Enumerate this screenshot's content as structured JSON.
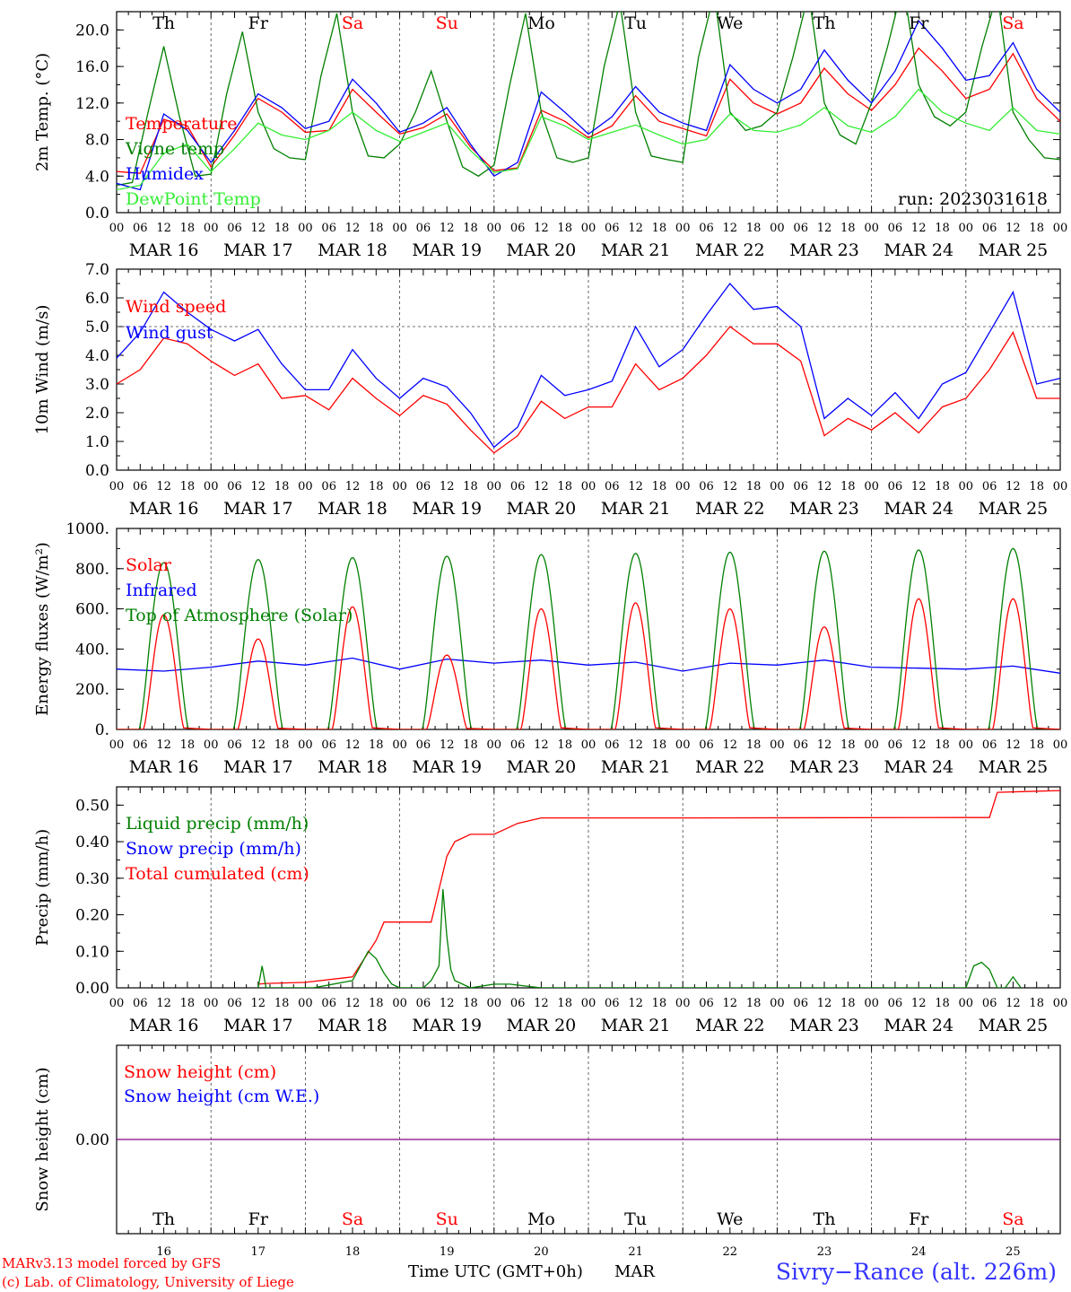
{
  "chart_data": [
    {
      "type": "line",
      "ylabel": "2m Temp. (°C)",
      "ylim": [
        0,
        22
      ],
      "yticks": [
        "0.0",
        "4.0",
        "8.0",
        "12.0",
        "16.0",
        "20.0"
      ],
      "ytick_values": [
        0,
        4,
        8,
        12,
        16,
        20
      ],
      "legend": [
        {
          "label": "Temperature",
          "color": "#ff0000"
        },
        {
          "label": "Vigne temp",
          "color": "#008000"
        },
        {
          "label": "Humidex",
          "color": "#0000ff"
        },
        {
          "label": "DewPoint Temp",
          "color": "#33ee33"
        }
      ],
      "run_label": "run: 2023031618",
      "series": [
        {
          "name": "Temperature",
          "color": "#ff0000",
          "x": [
            0,
            6,
            12,
            18,
            24,
            30,
            36,
            42,
            48,
            54,
            60,
            66,
            72,
            78,
            84,
            90,
            96,
            102,
            108,
            114,
            120,
            126,
            132,
            138,
            144,
            150,
            156,
            162,
            168,
            174,
            180,
            186,
            192,
            198,
            204,
            210,
            216,
            222,
            228,
            234,
            240
          ],
          "y": [
            4.5,
            4.3,
            10.2,
            9.5,
            5.0,
            8.5,
            12.5,
            11.0,
            8.8,
            9.0,
            13.5,
            11.0,
            8.6,
            9.3,
            10.8,
            7.2,
            4.6,
            4.9,
            11.2,
            10.0,
            8.2,
            9.5,
            12.8,
            10.0,
            9.2,
            8.4,
            14.6,
            12.0,
            10.8,
            12.0,
            15.8,
            13.0,
            11.2,
            14.0,
            18.0,
            15.5,
            12.5,
            13.5,
            17.4,
            12.5,
            10.0
          ]
        },
        {
          "name": "Vigne temp",
          "color": "#008000",
          "x": [
            0,
            4,
            8,
            12,
            16,
            20,
            24,
            28,
            32,
            36,
            40,
            44,
            48,
            52,
            56,
            60,
            64,
            68,
            72,
            76,
            80,
            84,
            88,
            92,
            96,
            100,
            104,
            108,
            112,
            116,
            120,
            124,
            128,
            132,
            136,
            140,
            144,
            148,
            152,
            156,
            160,
            164,
            168,
            172,
            176,
            180,
            184,
            188,
            192,
            196,
            200,
            204,
            208,
            212,
            216,
            220,
            224,
            228,
            232,
            236,
            240
          ],
          "y": [
            3.0,
            3.3,
            11.0,
            18.2,
            10.5,
            4.0,
            4.2,
            13.0,
            19.8,
            11.0,
            7.0,
            6.0,
            5.8,
            15.0,
            21.8,
            11.0,
            6.2,
            6.0,
            7.5,
            11.0,
            15.5,
            10.0,
            5.0,
            4.0,
            5.2,
            14.0,
            21.8,
            11.0,
            6.0,
            5.5,
            6.0,
            16.0,
            23.0,
            11.0,
            6.2,
            5.8,
            5.5,
            17.0,
            24.0,
            11.0,
            9.0,
            9.5,
            11.0,
            17.0,
            24.0,
            12.0,
            8.5,
            7.5,
            12.0,
            18.0,
            25.0,
            14.0,
            10.5,
            9.5,
            11.0,
            18.0,
            24.0,
            11.0,
            8.0,
            6.0,
            5.8
          ]
        },
        {
          "name": "Humidex",
          "color": "#0000ff",
          "x": [
            0,
            6,
            12,
            18,
            24,
            30,
            36,
            42,
            48,
            54,
            60,
            66,
            72,
            78,
            84,
            90,
            96,
            102,
            108,
            114,
            120,
            126,
            132,
            138,
            144,
            150,
            156,
            162,
            168,
            174,
            180,
            186,
            192,
            198,
            204,
            210,
            216,
            222,
            228,
            234,
            240
          ],
          "y": [
            3.2,
            2.5,
            10.8,
            9.0,
            5.5,
            9.0,
            13.0,
            11.5,
            9.2,
            10.0,
            14.6,
            12.0,
            8.8,
            9.8,
            11.5,
            7.5,
            4.0,
            5.5,
            13.2,
            11.0,
            8.6,
            10.5,
            13.8,
            11.0,
            9.8,
            9.0,
            16.2,
            13.5,
            12.0,
            13.5,
            17.8,
            14.5,
            12.0,
            15.5,
            21.0,
            18.0,
            14.5,
            15.0,
            18.6,
            13.5,
            11.0
          ]
        },
        {
          "name": "DewPoint Temp",
          "color": "#33ee33",
          "x": [
            0,
            6,
            12,
            18,
            24,
            30,
            36,
            42,
            48,
            54,
            60,
            66,
            72,
            78,
            84,
            90,
            96,
            102,
            108,
            114,
            120,
            126,
            132,
            138,
            144,
            150,
            156,
            162,
            168,
            174,
            180,
            186,
            192,
            198,
            204,
            210,
            216,
            222,
            228,
            234,
            240
          ],
          "y": [
            2.5,
            3.0,
            6.5,
            7.5,
            4.5,
            7.0,
            9.8,
            8.5,
            8.0,
            9.0,
            11.0,
            9.0,
            7.8,
            8.8,
            9.8,
            6.8,
            4.4,
            4.8,
            10.5,
            9.5,
            8.0,
            8.8,
            9.6,
            8.5,
            7.5,
            8.0,
            10.8,
            9.0,
            8.8,
            9.6,
            11.5,
            9.5,
            8.8,
            10.5,
            13.5,
            11.0,
            9.8,
            9.0,
            11.5,
            9.0,
            8.6
          ]
        }
      ]
    },
    {
      "type": "line",
      "ylabel": "10m Wind (m/s)",
      "ylim": [
        0,
        7
      ],
      "yticks": [
        "0.0",
        "1.0",
        "2.0",
        "3.0",
        "4.0",
        "5.0",
        "6.0",
        "7.0"
      ],
      "ytick_values": [
        0,
        1,
        2,
        3,
        4,
        5,
        6,
        7
      ],
      "ref_line": 5,
      "legend": [
        {
          "label": "Wind speed",
          "color": "#ff0000"
        },
        {
          "label": "Wind gust",
          "color": "#0000ff"
        }
      ],
      "series": [
        {
          "name": "Wind speed",
          "color": "#ff0000",
          "x": [
            0,
            6,
            12,
            18,
            24,
            30,
            36,
            42,
            48,
            54,
            60,
            66,
            72,
            78,
            84,
            90,
            96,
            102,
            108,
            114,
            120,
            126,
            132,
            138,
            144,
            150,
            156,
            162,
            168,
            174,
            180,
            186,
            192,
            198,
            204,
            210,
            216,
            222,
            228,
            234,
            240
          ],
          "y": [
            3.0,
            3.5,
            4.6,
            4.4,
            3.8,
            3.3,
            3.7,
            2.5,
            2.6,
            2.1,
            3.2,
            2.5,
            1.9,
            2.6,
            2.3,
            1.4,
            0.6,
            1.2,
            2.4,
            1.8,
            2.2,
            2.2,
            3.7,
            2.8,
            3.2,
            4.0,
            5.0,
            4.4,
            4.4,
            3.8,
            1.2,
            1.8,
            1.4,
            2.0,
            1.3,
            2.2,
            2.5,
            3.5,
            4.8,
            2.5,
            2.5
          ]
        },
        {
          "name": "Wind gust",
          "color": "#0000ff",
          "x": [
            0,
            6,
            12,
            18,
            24,
            30,
            36,
            42,
            48,
            54,
            60,
            66,
            72,
            78,
            84,
            90,
            96,
            102,
            108,
            114,
            120,
            126,
            132,
            138,
            144,
            150,
            156,
            162,
            168,
            174,
            180,
            186,
            192,
            198,
            204,
            210,
            216,
            222,
            228,
            234,
            240
          ],
          "y": [
            3.9,
            4.8,
            6.2,
            5.5,
            4.9,
            4.5,
            4.9,
            3.7,
            2.8,
            2.8,
            4.2,
            3.2,
            2.5,
            3.2,
            2.9,
            2.0,
            0.8,
            1.5,
            3.3,
            2.6,
            2.8,
            3.1,
            5.0,
            3.6,
            4.2,
            5.4,
            6.5,
            5.6,
            5.7,
            5.0,
            1.8,
            2.5,
            1.9,
            2.7,
            1.8,
            3.0,
            3.4,
            4.8,
            6.2,
            3.0,
            3.2
          ]
        }
      ]
    },
    {
      "type": "line",
      "ylabel": "Energy fluxes (W/m²)",
      "ylim": [
        0,
        1000
      ],
      "yticks": [
        "0.",
        "200.",
        "400.",
        "600.",
        "800.",
        "1000."
      ],
      "ytick_values": [
        0,
        200,
        400,
        600,
        800,
        1000
      ],
      "legend": [
        {
          "label": "Solar",
          "color": "#ff0000"
        },
        {
          "label": "Infrared",
          "color": "#0000ff"
        },
        {
          "label": "Top of Atmosphere (Solar)",
          "color": "#008000"
        }
      ],
      "daily_toa_peak": [
        830,
        845,
        855,
        862,
        870,
        876,
        882,
        887,
        893,
        900
      ],
      "daily_solar_peak": [
        570,
        450,
        610,
        370,
        600,
        630,
        600,
        510,
        650,
        650
      ],
      "series": [
        {
          "name": "Infrared",
          "color": "#0000ff",
          "x": [
            0,
            12,
            24,
            36,
            48,
            60,
            72,
            84,
            96,
            108,
            120,
            132,
            144,
            156,
            168,
            180,
            192,
            204,
            216,
            228,
            240
          ],
          "y": [
            300,
            290,
            310,
            340,
            320,
            355,
            300,
            350,
            330,
            345,
            320,
            335,
            290,
            330,
            320,
            345,
            310,
            305,
            300,
            315,
            280
          ]
        }
      ]
    },
    {
      "type": "line",
      "ylabel": "Precip (mm/h)",
      "ylim": [
        0,
        0.55
      ],
      "yticks": [
        "0.00",
        "0.10",
        "0.20",
        "0.30",
        "0.40",
        "0.50"
      ],
      "ytick_values": [
        0,
        0.1,
        0.2,
        0.3,
        0.4,
        0.5
      ],
      "legend": [
        {
          "label": "Liquid precip (mm/h)",
          "color": "#008000"
        },
        {
          "label": "Snow precip (mm/h)",
          "color": "#0000ff"
        },
        {
          "label": "Total cumulated (cm)",
          "color": "#ff0000"
        }
      ],
      "series": [
        {
          "name": "Total cumulated",
          "color": "#ff0000",
          "x": [
            36,
            38,
            48,
            60,
            66,
            68,
            72,
            80,
            84,
            86,
            90,
            96,
            102,
            108,
            144,
            216,
            219,
            222,
            224,
            240
          ],
          "y": [
            0.01,
            0.012,
            0.015,
            0.03,
            0.13,
            0.18,
            0.18,
            0.18,
            0.36,
            0.4,
            0.42,
            0.42,
            0.45,
            0.465,
            0.465,
            0.466,
            0.466,
            0.466,
            0.535,
            0.54
          ]
        },
        {
          "name": "Liquid precip",
          "color": "#008000",
          "x": [
            36,
            37,
            38,
            50,
            60,
            62,
            64,
            66,
            68,
            70,
            72,
            78,
            80,
            82,
            83,
            84,
            85,
            86,
            88,
            90,
            96,
            100,
            104,
            108,
            216,
            218,
            220,
            222,
            224,
            226,
            228,
            230
          ],
          "y": [
            0,
            0.06,
            0,
            0,
            0.02,
            0.06,
            0.1,
            0.08,
            0.04,
            0.01,
            0,
            0,
            0.02,
            0.06,
            0.27,
            0.14,
            0.05,
            0.02,
            0.01,
            0,
            0.01,
            0.01,
            0.005,
            0,
            0,
            0.06,
            0.07,
            0.05,
            0,
            0,
            0.03,
            0
          ]
        }
      ]
    },
    {
      "type": "line",
      "ylabel": "Snow height (cm)",
      "ylim": [
        -1,
        1
      ],
      "yticks": [
        "0.00"
      ],
      "ytick_values": [
        0
      ],
      "legend": [
        {
          "label": "Snow height (cm)",
          "color": "#ff0000"
        },
        {
          "label": "Snow height (cm W.E.)",
          "color": "#0000ff"
        }
      ],
      "series": [
        {
          "name": "Snow height",
          "color": "#800080",
          "x": [
            0,
            240
          ],
          "y": [
            0,
            0
          ]
        }
      ]
    }
  ],
  "axis": {
    "hour_labels": [
      "00",
      "06",
      "12",
      "18"
    ],
    "end_label": "00",
    "dates": [
      "MAR 16",
      "MAR 17",
      "MAR 18",
      "MAR 19",
      "MAR 20",
      "MAR 21",
      "MAR 22",
      "MAR 23",
      "MAR 24",
      "MAR 25"
    ],
    "weekdays": [
      "Th",
      "Fr",
      "Sa",
      "Su",
      "Mo",
      "Tu",
      "We",
      "Th",
      "Fr",
      "Sa"
    ],
    "weekday_colors": [
      "#000000",
      "#000000",
      "#ff0000",
      "#ff0000",
      "#000000",
      "#000000",
      "#000000",
      "#000000",
      "#000000",
      "#ff0000"
    ],
    "day_numbers": [
      "16",
      "17",
      "18",
      "19",
      "20",
      "21",
      "22",
      "23",
      "24",
      "25"
    ],
    "xlabel": "Time UTC (GMT+0h)",
    "month": "MAR"
  },
  "footer": {
    "credit_1": "MARv3.13 model forced by GFS",
    "credit_2": "(c) Lab. of Climatology, University of Liege",
    "station": "Sivry−Rance (alt. 226m)"
  }
}
